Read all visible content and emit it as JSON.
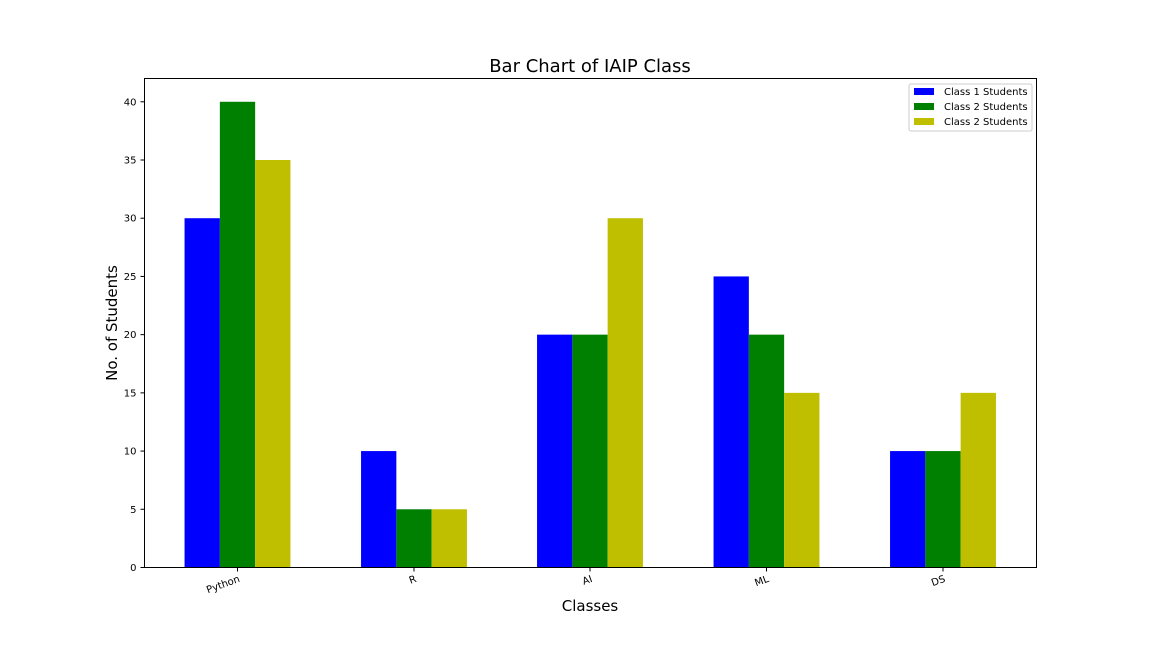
{
  "chart_data": {
    "type": "bar",
    "title": "Bar Chart of IAIP Class",
    "xlabel": "Classes",
    "ylabel": "No. of Students",
    "categories": [
      "Python",
      "R",
      "AI",
      "ML",
      "DS"
    ],
    "series": [
      {
        "name": "Class 1 Students",
        "values": [
          30,
          10,
          20,
          25,
          10
        ],
        "color": "#0000ff"
      },
      {
        "name": "Class 2 Students",
        "values": [
          40,
          5,
          20,
          20,
          10
        ],
        "color": "#008000"
      },
      {
        "name": "Class 2 Students",
        "values": [
          35,
          5,
          30,
          15,
          15
        ],
        "color": "#bfbf00"
      }
    ],
    "ylim": [
      0,
      42
    ],
    "yticks": [
      0,
      5,
      10,
      15,
      20,
      25,
      30,
      35,
      40
    ],
    "grid": false,
    "legend_position": "top-right",
    "xtick_rotation_deg": 20
  }
}
